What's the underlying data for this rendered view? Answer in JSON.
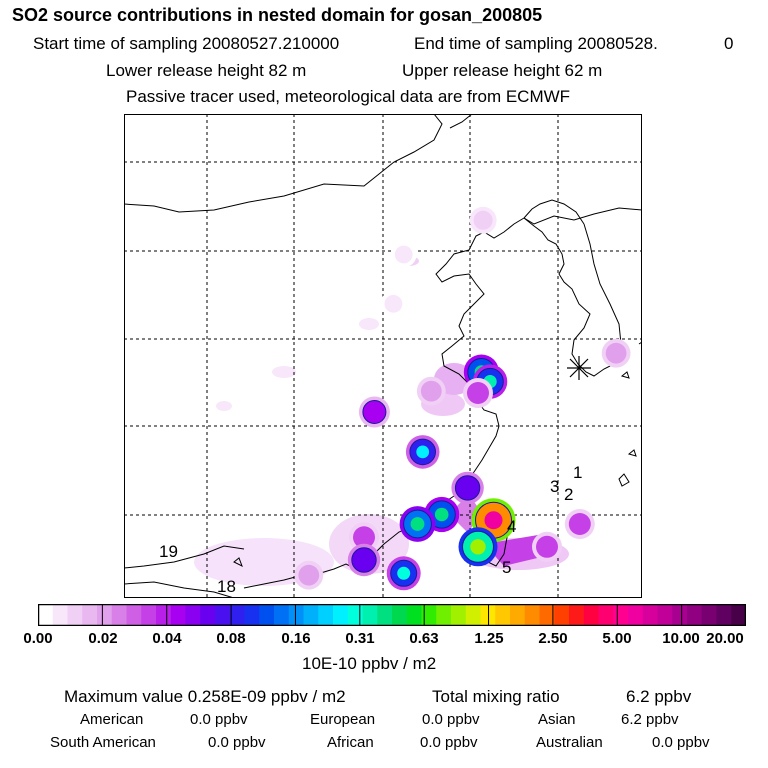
{
  "title": "SO2 source contributions in nested domain for gosan_200805",
  "header": {
    "start_label": "Start time of sampling 20080527.210000",
    "end_label": "End time of sampling 20080528.",
    "end_suffix": "0",
    "lower_label": "Lower release height   82 m",
    "upper_label": "Upper release height   62 m",
    "note": "Passive tracer used, meteorological data are from ECMWF"
  },
  "map": {
    "receptor": "Gosan",
    "labels": [
      {
        "text": "1",
        "lon": 127.6,
        "lat": 30.3
      },
      {
        "text": "2",
        "lon": 127.3,
        "lat": 29.7
      },
      {
        "text": "3",
        "lon": 126.9,
        "lat": 29.9
      },
      {
        "text": "4",
        "lon": 121.9,
        "lat": 28.0
      },
      {
        "text": "5",
        "lon": 121.9,
        "lat": 25.9
      },
      {
        "text": "19",
        "lon": 106.4,
        "lat": 26.9
      },
      {
        "text": "18",
        "lon": 108.1,
        "lat": 25.1
      }
    ],
    "extent": {
      "lon_min": 100,
      "lon_max": 130,
      "lat_min": 24.5,
      "lat_max": 50
    }
  },
  "chart_data": {
    "type": "heatmap",
    "title": "SO2 source contributions in nested domain for gosan_200805",
    "units": "10E-10 ppbv / m2",
    "colorbar_ticks": [
      "0.00",
      "0.02",
      "0.04",
      "0.08",
      "0.16",
      "0.31",
      "0.63",
      "1.25",
      "2.50",
      "5.00",
      "10.00",
      "20.00"
    ],
    "colorbar_colors": [
      "#ffffff",
      "#f8e6fb",
      "#f1d0f6",
      "#e9b8f1",
      "#e1a0ec",
      "#d880e8",
      "#cf60e5",
      "#c540e6",
      "#b820e9",
      "#a800f0",
      "#8a00f0",
      "#6a00f0",
      "#4a10f0",
      "#3020f0",
      "#1830f0",
      "#0050f0",
      "#0070f4",
      "#0090f8",
      "#00b0fb",
      "#00d0ff",
      "#00f0ff",
      "#00ffdc",
      "#00f0b0",
      "#00e080",
      "#00d850",
      "#00e020",
      "#30ec00",
      "#70f000",
      "#a0f000",
      "#d0f000",
      "#ffe600",
      "#ffc800",
      "#ffaa00",
      "#ff8c00",
      "#ff6a00",
      "#ff4000",
      "#ff1a1a",
      "#ff0040",
      "#ff0070",
      "#ff0090",
      "#f000a0",
      "#d8009c",
      "#c00098",
      "#a80090",
      "#900080",
      "#780070",
      "#600060",
      "#480048"
    ],
    "max_value": "0.258E-09 ppbv / m2",
    "total_mixing_ratio": "6.2 ppbv",
    "regions": [
      {
        "name": "American",
        "value": "0.0 ppbv"
      },
      {
        "name": "European",
        "value": "0.0 ppbv"
      },
      {
        "name": "Asian",
        "value": "6.2 ppbv"
      },
      {
        "name": "South American",
        "value": "0.0 ppbv"
      },
      {
        "name": "African",
        "value": "0.0 ppbv"
      },
      {
        "name": "Australian",
        "value": "0.0 ppbv"
      }
    ],
    "sources": [
      {
        "lon": 120.7,
        "lat": 36.4,
        "level": 0.12
      },
      {
        "lon": 121.2,
        "lat": 35.9,
        "level": 0.1
      },
      {
        "lon": 120.5,
        "lat": 35.3,
        "level": 0.03
      },
      {
        "lon": 117.8,
        "lat": 35.4,
        "level": 0.02
      },
      {
        "lon": 114.5,
        "lat": 34.3,
        "level": 0.04
      },
      {
        "lon": 117.3,
        "lat": 32.2,
        "level": 0.08
      },
      {
        "lon": 119.9,
        "lat": 30.3,
        "level": 0.06
      },
      {
        "lon": 118.4,
        "lat": 28.9,
        "level": 0.12
      },
      {
        "lon": 117.0,
        "lat": 28.4,
        "level": 0.14
      },
      {
        "lon": 121.4,
        "lat": 28.6,
        "level": 2.0
      },
      {
        "lon": 120.5,
        "lat": 27.2,
        "level": 0.3
      },
      {
        "lon": 126.4,
        "lat": 28.4,
        "level": 0.03
      },
      {
        "lon": 124.5,
        "lat": 27.2,
        "level": 0.03
      },
      {
        "lon": 113.9,
        "lat": 27.7,
        "level": 0.03
      },
      {
        "lon": 113.9,
        "lat": 26.5,
        "level": 0.06
      },
      {
        "lon": 116.2,
        "lat": 25.8,
        "level": 0.09
      },
      {
        "lon": 110.7,
        "lat": 25.7,
        "level": 0.02
      },
      {
        "lon": 120.8,
        "lat": 44.4,
        "level": 0.01
      },
      {
        "lon": 116.2,
        "lat": 42.6,
        "level": 0.005
      },
      {
        "lon": 115.6,
        "lat": 40.0,
        "level": 0.005
      },
      {
        "lon": 128.5,
        "lat": 37.4,
        "level": 0.02
      }
    ]
  },
  "footer": {
    "max_label": "Maximum value  0.258E-09 ppbv / m2",
    "total_label": "Total mixing ratio",
    "total_value": "6.2 ppbv"
  }
}
